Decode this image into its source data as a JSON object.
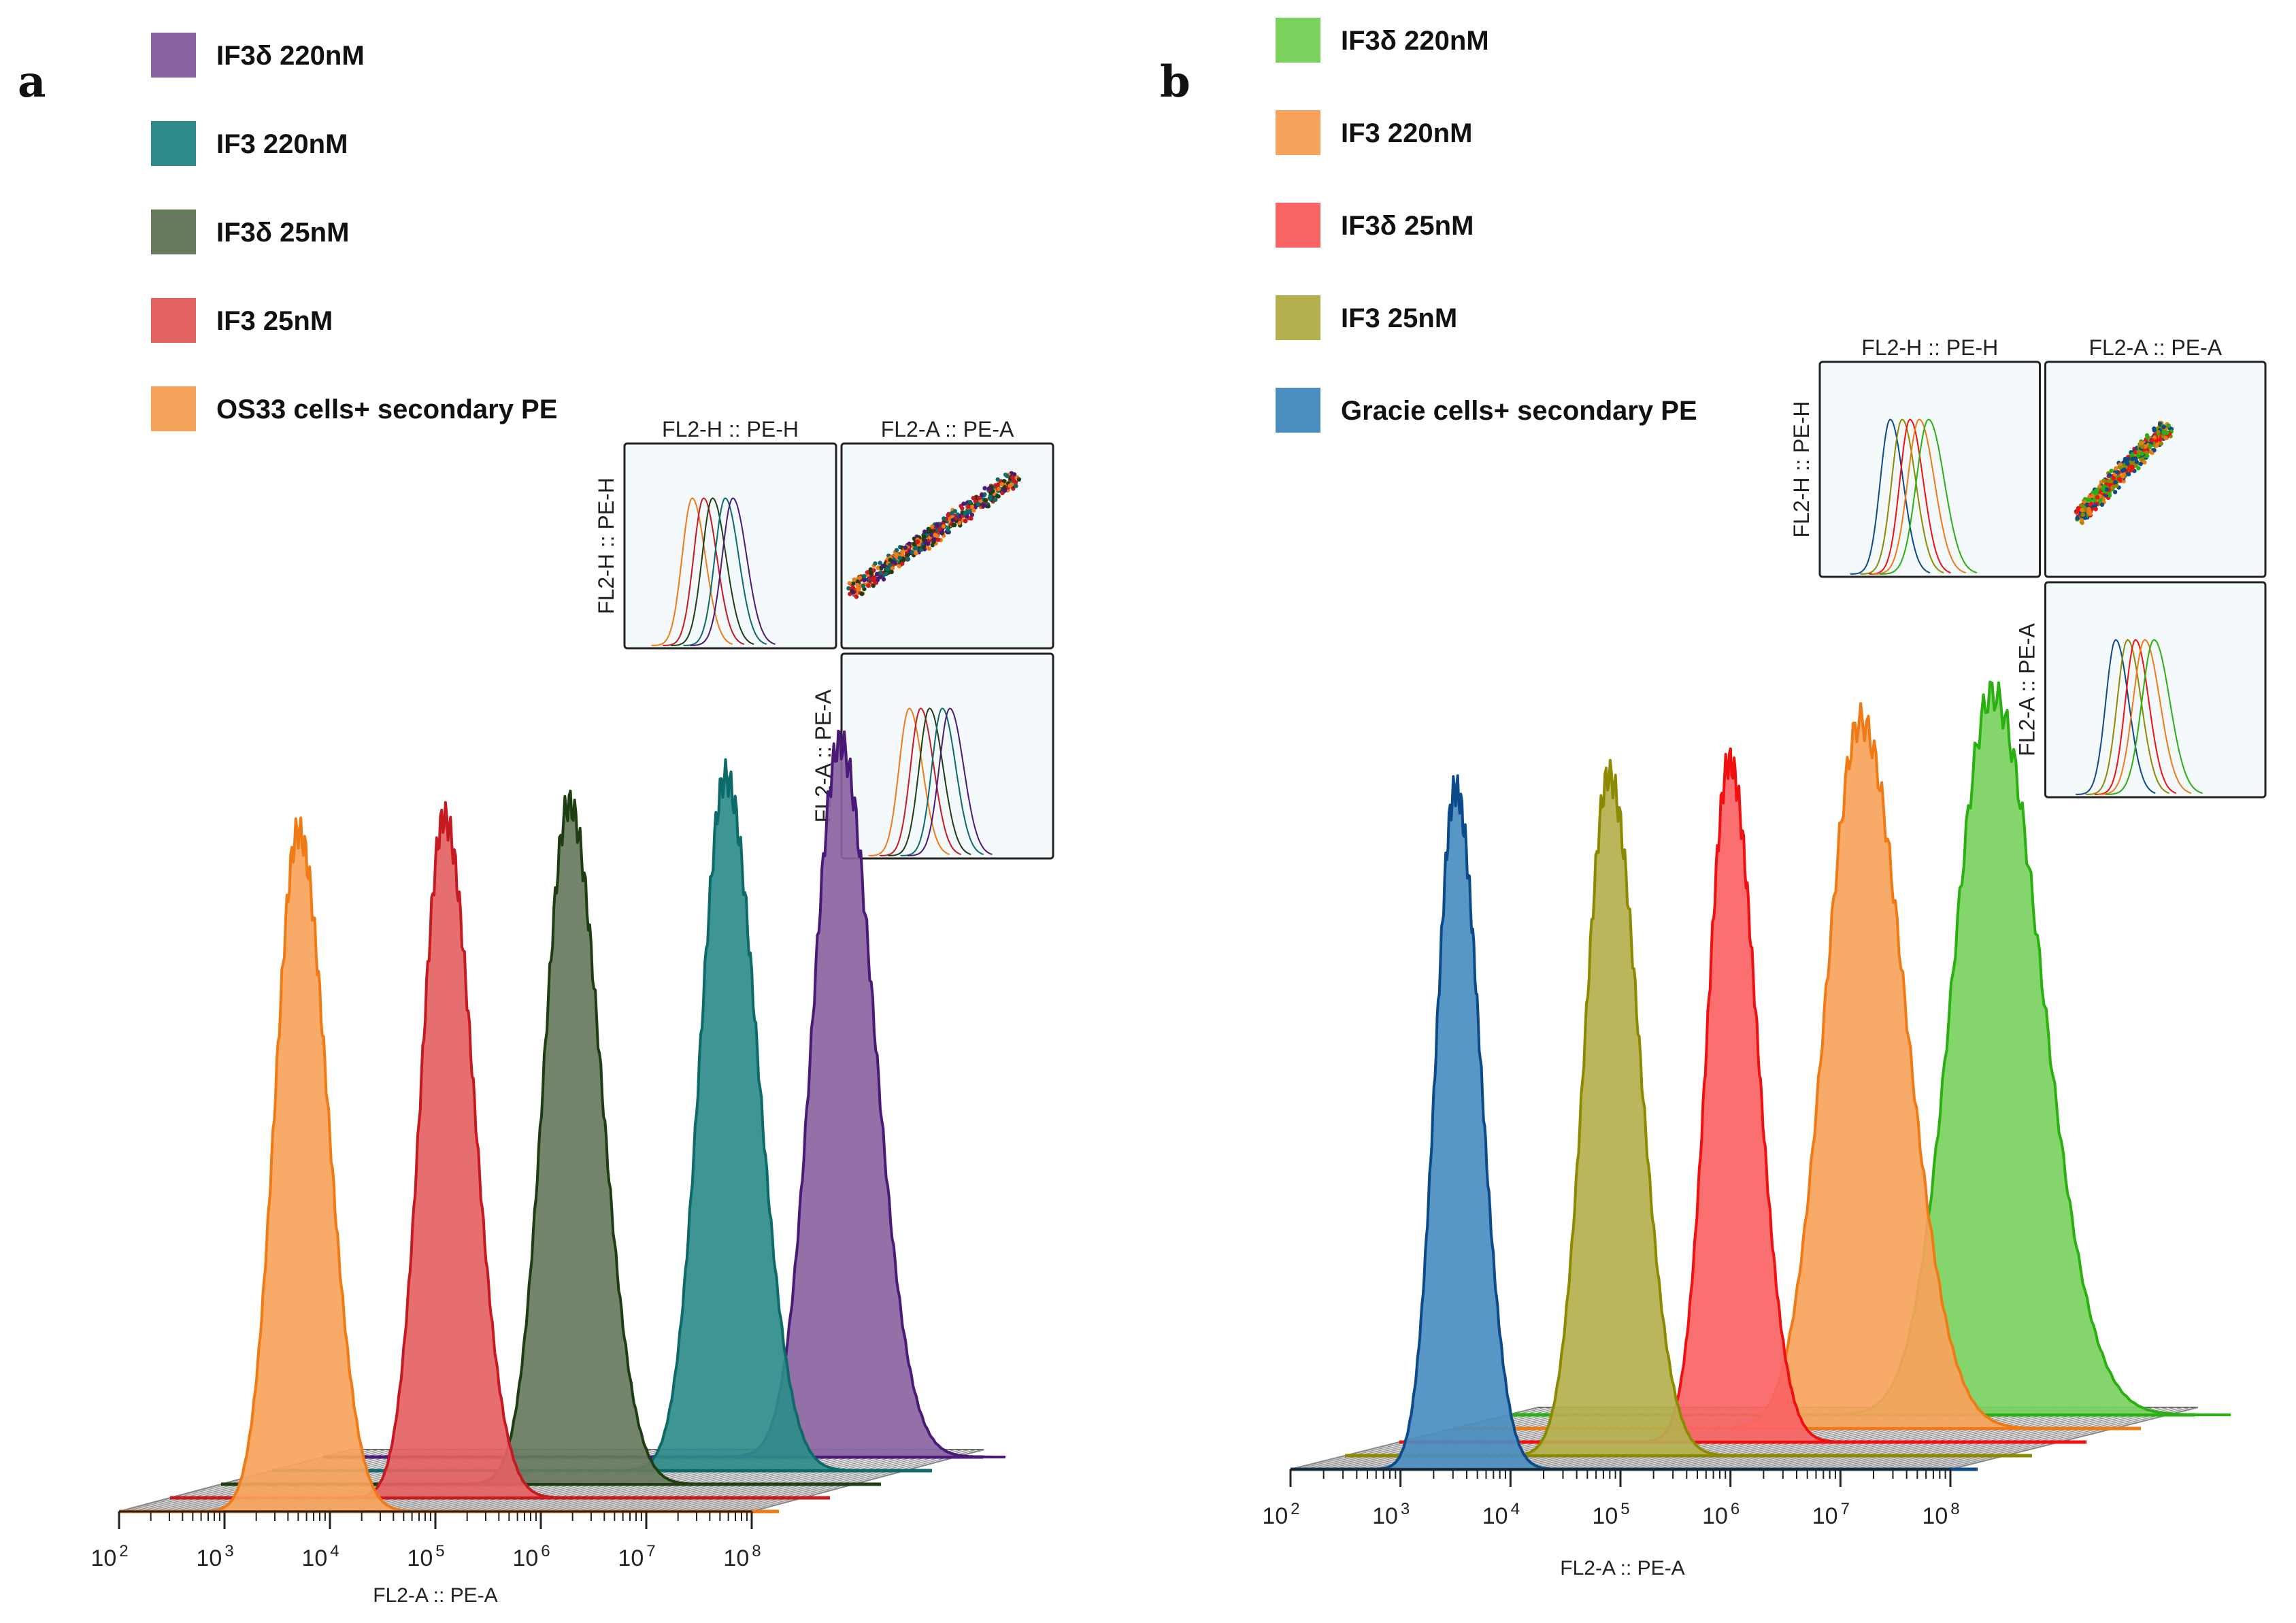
{
  "chart_data": [
    {
      "panel": "a",
      "type": "area",
      "title": "",
      "xlabel": "FL2-A :: PE-A",
      "x_scale": "log10",
      "xlim_exponent": [
        2,
        8
      ],
      "x_ticks": [
        {
          "base": "10",
          "exp": "2"
        },
        {
          "base": "10",
          "exp": "3"
        },
        {
          "base": "10",
          "exp": "4"
        },
        {
          "base": "10",
          "exp": "5"
        },
        {
          "base": "10",
          "exp": "6"
        },
        {
          "base": "10",
          "exp": "7"
        },
        {
          "base": "10",
          "exp": "8"
        }
      ],
      "legend": [
        {
          "label": "IF3δ 220nM",
          "color": "#8a64a0"
        },
        {
          "label": "IF3 220nM",
          "color": "#2e8c8a"
        },
        {
          "label": "IF3δ 25nM",
          "color": "#687a5e"
        },
        {
          "label": "IF3 25nM",
          "color": "#e46262"
        },
        {
          "label": "OS33 cells+ secondary PE",
          "color": "#f7a35c"
        }
      ],
      "series": [
        {
          "name": "OS33 cells+ secondary PE",
          "peak_log10": 3.7,
          "width": 0.22,
          "fill": "#f7a35c",
          "line": "#f07b16"
        },
        {
          "name": "IF3 25nM",
          "peak_log10": 4.6,
          "width": 0.22,
          "fill": "#e46262",
          "line": "#c61a22"
        },
        {
          "name": "IF3δ 25nM",
          "peak_log10": 5.3,
          "width": 0.24,
          "fill": "#687a5e",
          "line": "#1e3d12"
        },
        {
          "name": "IF3 220nM",
          "peak_log10": 6.3,
          "width": 0.24,
          "fill": "#2e8c8a",
          "line": "#0c6a68"
        },
        {
          "name": "IF3δ 220nM",
          "peak_log10": 6.9,
          "width": 0.26,
          "fill": "#8a64a0",
          "line": "#4b1a78"
        }
      ],
      "inset": {
        "titles": [
          "FL2-H :: PE-H",
          "FL2-A :: PE-A"
        ],
        "ylabels": [
          "FL2-H :: PE-H",
          "FL2-A :: PE-A"
        ]
      }
    },
    {
      "panel": "b",
      "type": "area",
      "title": "",
      "xlabel": "FL2-A :: PE-A",
      "x_scale": "log10",
      "xlim_exponent": [
        2,
        8
      ],
      "x_ticks": [
        {
          "base": "10",
          "exp": "2"
        },
        {
          "base": "10",
          "exp": "3"
        },
        {
          "base": "10",
          "exp": "4"
        },
        {
          "base": "10",
          "exp": "5"
        },
        {
          "base": "10",
          "exp": "6"
        },
        {
          "base": "10",
          "exp": "7"
        },
        {
          "base": "10",
          "exp": "8"
        }
      ],
      "legend": [
        {
          "label": "IF3δ 220nM",
          "color": "#7ad15e"
        },
        {
          "label": "IF3 220nM",
          "color": "#f7a35c"
        },
        {
          "label": "IF3δ 25nM",
          "color": "#fa6464"
        },
        {
          "label": "IF3 25nM",
          "color": "#b5b04e"
        },
        {
          "label": "Gracie cells+ secondary PE",
          "color": "#4a8dc0"
        }
      ],
      "series": [
        {
          "name": "Gracie cells+ secondary PE",
          "peak_log10": 3.5,
          "width": 0.18,
          "fill": "#4a8dc0",
          "line": "#0c4a8a"
        },
        {
          "name": "IF3 25nM",
          "peak_log10": 4.4,
          "width": 0.22,
          "fill": "#b5b04e",
          "line": "#8c8a00"
        },
        {
          "name": "IF3δ 25nM",
          "peak_log10": 5.0,
          "width": 0.2,
          "fill": "#fa6464",
          "line": "#f01010"
        },
        {
          "name": "IF3 220nM",
          "peak_log10": 5.7,
          "width": 0.32,
          "fill": "#f7a35c",
          "line": "#f07b16"
        },
        {
          "name": "IF3δ 220nM",
          "peak_log10": 6.4,
          "width": 0.36,
          "fill": "#7ad15e",
          "line": "#2ab010"
        }
      ],
      "inset": {
        "titles": [
          "FL2-H :: PE-H",
          "FL2-A :: PE-A"
        ],
        "ylabels": [
          "FL2-H :: PE-H",
          "FL2-A :: PE-A"
        ]
      }
    }
  ]
}
